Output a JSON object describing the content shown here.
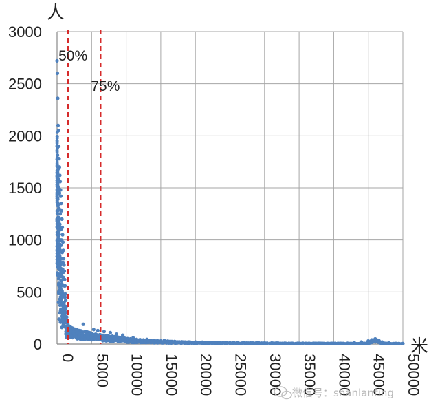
{
  "chart_data": {
    "type": "scatter",
    "title": "",
    "xlabel": "米",
    "ylabel": "人",
    "xlim": [
      0,
      50000
    ],
    "ylim": [
      0,
      3000
    ],
    "x_ticks": [
      "0",
      "5000",
      "10000",
      "15000",
      "20000",
      "25000",
      "30000",
      "35000",
      "40000",
      "45000",
      "50000"
    ],
    "y_ticks": [
      "0",
      "500",
      "1000",
      "1500",
      "2000",
      "2500",
      "3000"
    ],
    "grid": true,
    "marker_color": "#4f81bd",
    "reference_line_color": "#d62b2b",
    "reference_lines": [
      {
        "x": 1600,
        "label": "50%"
      },
      {
        "x": 6300,
        "label": "75%"
      }
    ],
    "series": [
      {
        "values_note": "",
        "points": [
          [
            0,
            2720
          ],
          [
            50,
            2600
          ],
          [
            100,
            2360
          ],
          [
            150,
            2100
          ],
          [
            200,
            2050
          ],
          [
            250,
            1900
          ],
          [
            300,
            1780
          ],
          [
            350,
            1700
          ],
          [
            400,
            1620
          ],
          [
            450,
            1560
          ],
          [
            500,
            1480
          ],
          [
            550,
            1420
          ],
          [
            600,
            1350
          ],
          [
            650,
            1280
          ],
          [
            700,
            1200
          ],
          [
            750,
            1120
          ],
          [
            800,
            1050
          ],
          [
            850,
            980
          ],
          [
            900,
            900
          ],
          [
            950,
            820
          ],
          [
            1000,
            760
          ],
          [
            1050,
            700
          ],
          [
            1100,
            620
          ],
          [
            1150,
            560
          ],
          [
            1200,
            480
          ],
          [
            1250,
            420
          ],
          [
            1300,
            360
          ],
          [
            1350,
            300
          ],
          [
            1400,
            260
          ],
          [
            1450,
            230
          ],
          [
            1500,
            210
          ],
          [
            1550,
            195
          ],
          [
            1600,
            180
          ],
          [
            100,
            1350
          ],
          [
            200,
            1500
          ],
          [
            300,
            1300
          ],
          [
            400,
            1150
          ],
          [
            500,
            1000
          ],
          [
            600,
            950
          ],
          [
            700,
            820
          ],
          [
            800,
            720
          ],
          [
            900,
            640
          ],
          [
            150,
            1680
          ],
          [
            250,
            1580
          ],
          [
            350,
            1450
          ],
          [
            450,
            1250
          ],
          [
            550,
            1100
          ],
          [
            650,
            1000
          ],
          [
            750,
            880
          ],
          [
            850,
            780
          ],
          [
            950,
            690
          ],
          [
            1050,
            560
          ],
          [
            1150,
            450
          ],
          [
            300,
            240
          ],
          [
            500,
            210
          ],
          [
            700,
            160
          ],
          [
            200,
            400
          ],
          [
            400,
            300
          ],
          [
            600,
            430
          ],
          [
            800,
            260
          ],
          [
            1000,
            380
          ],
          [
            1200,
            240
          ],
          [
            1800,
            170
          ],
          [
            2000,
            160
          ],
          [
            2300,
            150
          ],
          [
            2600,
            140
          ],
          [
            2900,
            135
          ],
          [
            3200,
            130
          ],
          [
            3500,
            125
          ],
          [
            3800,
            190
          ],
          [
            4100,
            120
          ],
          [
            4400,
            115
          ],
          [
            4700,
            110
          ],
          [
            5000,
            100
          ],
          [
            5300,
            140
          ],
          [
            5600,
            95
          ],
          [
            5900,
            130
          ],
          [
            6200,
            90
          ],
          [
            6500,
            85
          ],
          [
            6800,
            120
          ],
          [
            7100,
            80
          ],
          [
            7400,
            78
          ],
          [
            7700,
            110
          ],
          [
            8000,
            75
          ],
          [
            8300,
            70
          ],
          [
            8600,
            95
          ],
          [
            8900,
            65
          ],
          [
            9200,
            60
          ],
          [
            9500,
            85
          ],
          [
            9800,
            55
          ],
          [
            10200,
            52
          ],
          [
            10600,
            50
          ],
          [
            11000,
            60
          ],
          [
            11500,
            45
          ],
          [
            12000,
            42
          ],
          [
            12500,
            40
          ],
          [
            13000,
            45
          ],
          [
            13500,
            36
          ],
          [
            14000,
            34
          ],
          [
            14500,
            32
          ],
          [
            15000,
            30
          ],
          [
            15500,
            35
          ],
          [
            16000,
            28
          ],
          [
            17000,
            25
          ],
          [
            18000,
            22
          ],
          [
            19000,
            20
          ],
          [
            20000,
            20
          ],
          [
            21000,
            18
          ],
          [
            22000,
            16
          ],
          [
            23000,
            15
          ],
          [
            24000,
            14
          ],
          [
            25000,
            13
          ],
          [
            26000,
            12
          ],
          [
            27000,
            11
          ],
          [
            28000,
            10
          ],
          [
            29000,
            10
          ],
          [
            30000,
            9
          ],
          [
            31000,
            9
          ],
          [
            32000,
            8
          ],
          [
            33000,
            8
          ],
          [
            34000,
            7
          ],
          [
            35000,
            7
          ],
          [
            36000,
            6
          ],
          [
            37000,
            6
          ],
          [
            38000,
            6
          ],
          [
            39000,
            5
          ],
          [
            40000,
            5
          ],
          [
            41000,
            6
          ],
          [
            42000,
            8
          ],
          [
            43000,
            12
          ],
          [
            44000,
            20
          ],
          [
            45000,
            30
          ],
          [
            45500,
            40
          ],
          [
            46000,
            50
          ],
          [
            46500,
            35
          ],
          [
            47000,
            20
          ],
          [
            48000,
            10
          ],
          [
            49000,
            6
          ],
          [
            50000,
            5
          ]
        ]
      }
    ]
  },
  "watermark": "微信号：shanlanting"
}
